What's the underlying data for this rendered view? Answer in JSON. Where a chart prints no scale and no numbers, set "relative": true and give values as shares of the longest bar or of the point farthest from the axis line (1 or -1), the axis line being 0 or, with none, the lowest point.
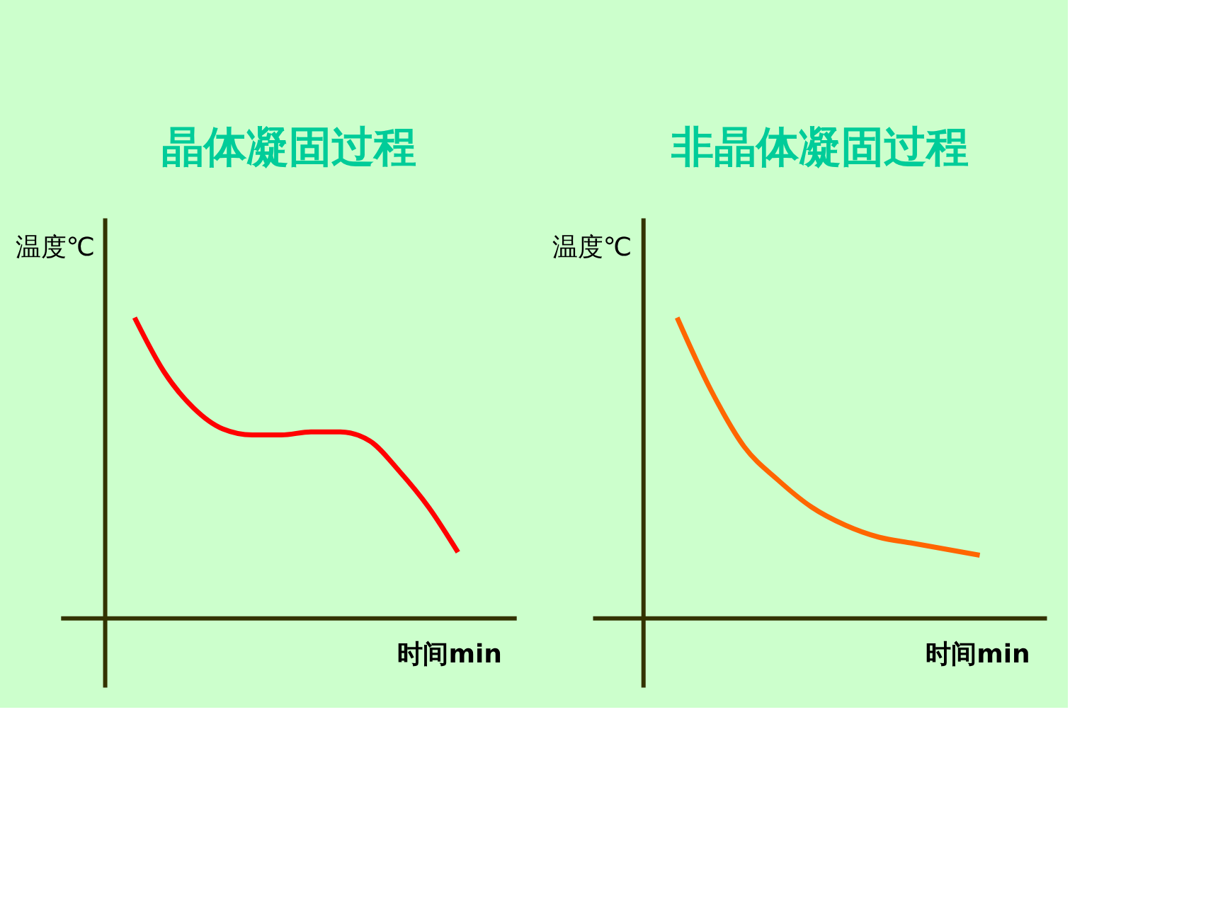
{
  "chart_data": [
    {
      "type": "line",
      "title": "晶体凝固过程",
      "xlabel": "时间min",
      "ylabel": "温度℃",
      "relative": true,
      "categories": [
        null,
        null,
        null,
        null,
        null,
        null,
        null,
        null,
        null,
        null,
        null,
        null
      ],
      "series": [
        {
          "color": "#ff0000",
          "values": [
            1,
            0.82,
            0.7,
            0.63,
            0.61,
            0.61,
            0.62,
            0.62,
            0.59,
            0.49,
            0.37,
            0.22
          ]
        }
      ]
    },
    {
      "type": "line",
      "title": "非晶体凝固过程",
      "xlabel": "时间min",
      "ylabel": "温度℃",
      "relative": true,
      "categories": [
        null,
        null,
        null,
        null,
        null,
        null,
        null,
        null,
        null,
        null
      ],
      "series": [
        {
          "color": "#ff6600",
          "values": [
            1,
            0.76,
            0.57,
            0.46,
            0.37,
            0.31,
            0.27,
            0.25,
            0.23,
            0.21
          ]
        }
      ]
    }
  ]
}
